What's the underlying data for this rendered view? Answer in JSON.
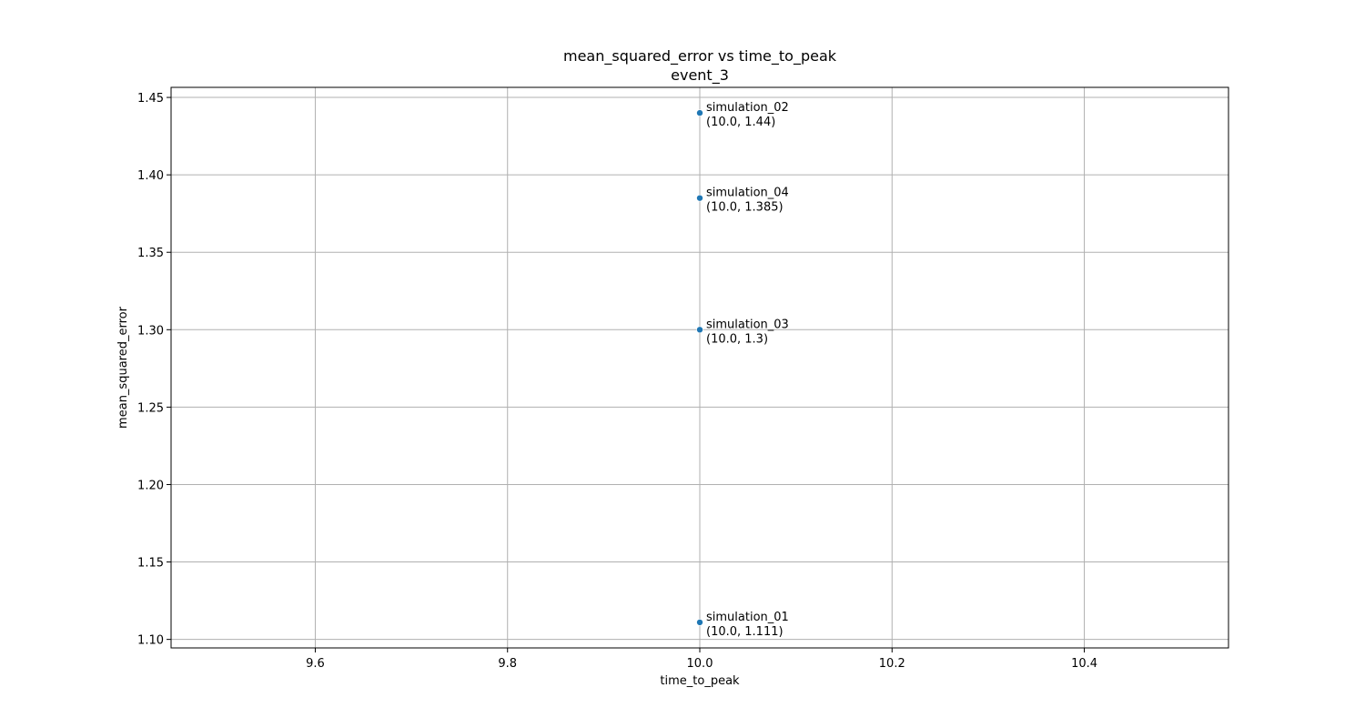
{
  "chart_data": {
    "type": "scatter",
    "title": "mean_squared_error vs time_to_peak",
    "subtitle": "event_3",
    "xlabel": "time_to_peak",
    "ylabel": "mean_squared_error",
    "xlim": [
      9.45,
      10.55
    ],
    "ylim": [
      1.0945,
      1.4565
    ],
    "xticks": [
      9.6,
      9.8,
      10.0,
      10.2,
      10.4
    ],
    "xtick_labels": [
      "9.6",
      "9.8",
      "10.0",
      "10.2",
      "10.4"
    ],
    "yticks": [
      1.1,
      1.15,
      1.2,
      1.25,
      1.3,
      1.35,
      1.4,
      1.45
    ],
    "ytick_labels": [
      "1.10",
      "1.15",
      "1.20",
      "1.25",
      "1.30",
      "1.35",
      "1.40",
      "1.45"
    ],
    "grid": true,
    "marker_color": "#1f77b4",
    "points": [
      {
        "name": "simulation_02",
        "x": 10.0,
        "y": 1.44,
        "coord_label": "(10.0, 1.44)"
      },
      {
        "name": "simulation_04",
        "x": 10.0,
        "y": 1.385,
        "coord_label": "(10.0, 1.385)"
      },
      {
        "name": "simulation_03",
        "x": 10.0,
        "y": 1.3,
        "coord_label": "(10.0, 1.3)"
      },
      {
        "name": "simulation_01",
        "x": 10.0,
        "y": 1.111,
        "coord_label": "(10.0, 1.111)"
      }
    ]
  }
}
